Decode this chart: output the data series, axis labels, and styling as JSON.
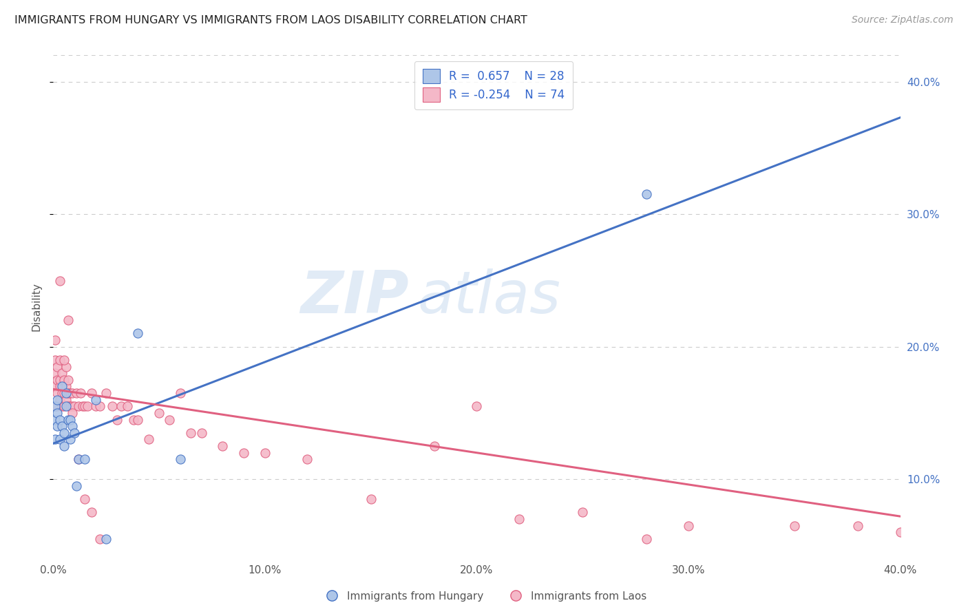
{
  "title": "IMMIGRANTS FROM HUNGARY VS IMMIGRANTS FROM LAOS DISABILITY CORRELATION CHART",
  "source": "Source: ZipAtlas.com",
  "ylabel": "Disability",
  "xlim": [
    0.0,
    0.4
  ],
  "ylim": [
    0.04,
    0.42
  ],
  "yticks": [
    0.1,
    0.2,
    0.3,
    0.4
  ],
  "xticks": [
    0.0,
    0.1,
    0.2,
    0.3,
    0.4
  ],
  "xtick_labels": [
    "0.0%",
    "10.0%",
    "20.0%",
    "30.0%",
    "40.0%"
  ],
  "ytick_labels": [
    "10.0%",
    "20.0%",
    "30.0%",
    "40.0%"
  ],
  "blue_scatter_color": "#aec6e8",
  "blue_edge_color": "#4472c4",
  "pink_scatter_color": "#f4b8c8",
  "pink_edge_color": "#e06080",
  "blue_line_color": "#4472c4",
  "pink_line_color": "#e06080",
  "legend_label_blue": "Immigrants from Hungary",
  "legend_label_pink": "Immigrants from Laos",
  "watermark_zip": "ZIP",
  "watermark_atlas": "atlas",
  "blue_line_x0": 0.0,
  "blue_line_y0": 0.127,
  "blue_line_x1": 0.4,
  "blue_line_y1": 0.373,
  "pink_line_x0": 0.0,
  "pink_line_y0": 0.168,
  "pink_line_x1": 0.4,
  "pink_line_y1": 0.072,
  "hungary_x": [
    0.001,
    0.001,
    0.001,
    0.002,
    0.002,
    0.002,
    0.003,
    0.003,
    0.004,
    0.004,
    0.005,
    0.005,
    0.006,
    0.006,
    0.007,
    0.008,
    0.008,
    0.009,
    0.01,
    0.011,
    0.012,
    0.015,
    0.02,
    0.025,
    0.04,
    0.06,
    0.28
  ],
  "hungary_y": [
    0.13,
    0.145,
    0.155,
    0.14,
    0.15,
    0.16,
    0.13,
    0.145,
    0.14,
    0.17,
    0.135,
    0.125,
    0.155,
    0.165,
    0.145,
    0.13,
    0.145,
    0.14,
    0.135,
    0.095,
    0.115,
    0.115,
    0.16,
    0.055,
    0.21,
    0.115,
    0.315
  ],
  "laos_x": [
    0.001,
    0.001,
    0.001,
    0.001,
    0.001,
    0.002,
    0.002,
    0.002,
    0.002,
    0.003,
    0.003,
    0.003,
    0.003,
    0.004,
    0.004,
    0.004,
    0.005,
    0.005,
    0.005,
    0.006,
    0.006,
    0.006,
    0.007,
    0.007,
    0.007,
    0.008,
    0.008,
    0.009,
    0.009,
    0.01,
    0.011,
    0.012,
    0.013,
    0.014,
    0.015,
    0.016,
    0.018,
    0.02,
    0.022,
    0.025,
    0.028,
    0.03,
    0.032,
    0.035,
    0.038,
    0.04,
    0.045,
    0.05,
    0.055,
    0.06,
    0.065,
    0.07,
    0.08,
    0.09,
    0.1,
    0.12,
    0.15,
    0.18,
    0.2,
    0.22,
    0.25,
    0.28,
    0.3,
    0.35,
    0.38,
    0.4,
    0.003,
    0.005,
    0.007,
    0.009,
    0.012,
    0.015,
    0.018,
    0.022
  ],
  "laos_y": [
    0.155,
    0.17,
    0.18,
    0.19,
    0.205,
    0.155,
    0.165,
    0.175,
    0.185,
    0.16,
    0.17,
    0.175,
    0.19,
    0.155,
    0.165,
    0.18,
    0.155,
    0.165,
    0.175,
    0.16,
    0.17,
    0.185,
    0.155,
    0.165,
    0.175,
    0.155,
    0.165,
    0.155,
    0.165,
    0.155,
    0.165,
    0.155,
    0.165,
    0.155,
    0.155,
    0.155,
    0.165,
    0.155,
    0.155,
    0.165,
    0.155,
    0.145,
    0.155,
    0.155,
    0.145,
    0.145,
    0.13,
    0.15,
    0.145,
    0.165,
    0.135,
    0.135,
    0.125,
    0.12,
    0.12,
    0.115,
    0.085,
    0.125,
    0.155,
    0.07,
    0.075,
    0.055,
    0.065,
    0.065,
    0.065,
    0.06,
    0.25,
    0.19,
    0.22,
    0.15,
    0.115,
    0.085,
    0.075,
    0.055
  ]
}
